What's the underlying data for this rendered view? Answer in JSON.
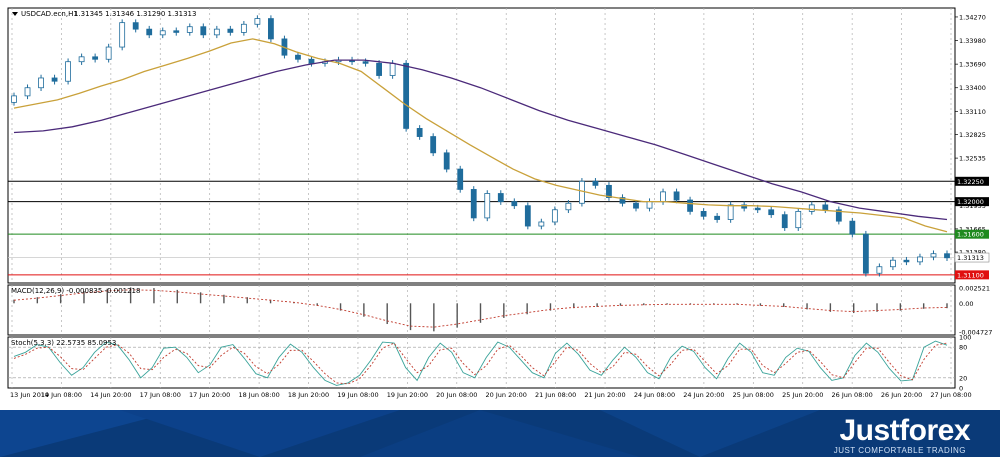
{
  "chart_data": {
    "type": "candlestick",
    "symbol_label": "USDCAD.ecn,H1",
    "ohlc_label": "1.31345 1.31346 1.31290 1.31313",
    "price_axis": {
      "ticks": [
        "1.34270",
        "1.33980",
        "1.33690",
        "1.33400",
        "1.33110",
        "1.32825",
        "1.32535",
        "1.32250",
        "1.31955",
        "1.31665",
        "1.31380",
        "1.31090"
      ],
      "ylim": [
        1.31,
        1.3438
      ]
    },
    "levels": [
      {
        "label": "1.32250",
        "value": 1.3225,
        "color": "#000000"
      },
      {
        "label": "1.32000",
        "value": 1.32,
        "color": "#000000"
      },
      {
        "label": "1.31600",
        "value": 1.316,
        "color": "#1f8a1f"
      },
      {
        "label": "1.31100",
        "value": 1.311,
        "color": "#e01010"
      }
    ],
    "last_price_label": "1.31313",
    "x_labels": [
      "13 Jun 2019",
      "14 Jun 08:00",
      "14 Jun 20:00",
      "17 Jun 08:00",
      "17 Jun 20:00",
      "18 Jun 08:00",
      "18 Jun 20:00",
      "19 Jun 08:00",
      "19 Jun 20:00",
      "20 Jun 08:00",
      "20 Jun 20:00",
      "21 Jun 08:00",
      "21 Jun 20:00",
      "24 Jun 08:00",
      "24 Jun 20:00",
      "25 Jun 08:00",
      "25 Jun 20:00",
      "26 Jun 08:00",
      "26 Jun 20:00",
      "27 Jun 08:00"
    ],
    "close": [
      1.333,
      1.334,
      1.3352,
      1.3348,
      1.3372,
      1.3378,
      1.3375,
      1.339,
      1.342,
      1.3412,
      1.3405,
      1.341,
      1.3408,
      1.3415,
      1.3405,
      1.3412,
      1.3408,
      1.3418,
      1.3425,
      1.34,
      1.338,
      1.3375,
      1.337,
      1.3372,
      1.3374,
      1.3372,
      1.337,
      1.3355,
      1.337,
      1.329,
      1.328,
      1.326,
      1.324,
      1.3215,
      1.318,
      1.321,
      1.32,
      1.3195,
      1.317,
      1.3175,
      1.319,
      1.3198,
      1.3225,
      1.322,
      1.3205,
      1.3198,
      1.3192,
      1.32,
      1.3212,
      1.3202,
      1.3188,
      1.3182,
      1.3178,
      1.3196,
      1.3192,
      1.319,
      1.3184,
      1.3168,
      1.3188,
      1.3196,
      1.319,
      1.3176,
      1.316,
      1.3112,
      1.312,
      1.3128,
      1.3126,
      1.3132,
      1.3136,
      1.3131
    ],
    "ma_fast": [
      1.3315,
      1.332,
      1.3325,
      1.3333,
      1.3342,
      1.335,
      1.336,
      1.3368,
      1.3376,
      1.3385,
      1.3395,
      1.34,
      1.3394,
      1.3384,
      1.3376,
      1.337,
      1.336,
      1.334,
      1.332,
      1.3302,
      1.3286,
      1.327,
      1.3255,
      1.324,
      1.3228,
      1.322,
      1.3214,
      1.3208,
      1.3204,
      1.32,
      1.32,
      1.3198,
      1.3196,
      1.3195,
      1.3195,
      1.3194,
      1.3192,
      1.319,
      1.3188,
      1.3186,
      1.3183,
      1.318,
      1.317,
      1.3163
    ],
    "ma_slow": [
      1.3285,
      1.3287,
      1.3292,
      1.33,
      1.331,
      1.332,
      1.333,
      1.334,
      1.335,
      1.336,
      1.3368,
      1.3374,
      1.3374,
      1.337,
      1.3362,
      1.3352,
      1.334,
      1.3326,
      1.3312,
      1.33,
      1.329,
      1.328,
      1.327,
      1.3258,
      1.3246,
      1.3234,
      1.3222,
      1.3212,
      1.32,
      1.3192,
      1.3187,
      1.3182,
      1.3178
    ],
    "macd": {
      "label": "MACD(12,26,9) -0.000835 -0.001218",
      "ticks": [
        "0.002521",
        "0.00",
        "-0.004727"
      ],
      "ylim": [
        -0.0052,
        0.003
      ],
      "hist": [
        0.0006,
        0.001,
        0.0015,
        0.002,
        0.0024,
        0.0026,
        0.0025,
        0.0022,
        0.0018,
        0.0014,
        0.001,
        0.0006,
        0.0002,
        -0.0004,
        -0.0012,
        -0.0022,
        -0.0034,
        -0.0044,
        -0.0046,
        -0.004,
        -0.0032,
        -0.0024,
        -0.0018,
        -0.0012,
        -0.0008,
        -0.0006,
        -0.0004,
        -0.0003,
        -0.0002,
        -0.0002,
        -0.0002,
        -0.0002,
        -0.0004,
        -0.0006,
        -0.001,
        -0.0014,
        -0.0016,
        -0.0014,
        -0.0012,
        -0.0009,
        -0.0008
      ]
    },
    "stoch": {
      "label": "Stoch(5,3,3) 22.5735 85.0953",
      "ticks": [
        "100",
        "80",
        "20",
        "0"
      ],
      "ylim": [
        0,
        100
      ],
      "main": [
        62,
        70,
        85,
        80,
        50,
        25,
        40,
        70,
        90,
        84,
        55,
        20,
        40,
        78,
        80,
        60,
        30,
        45,
        80,
        85,
        58,
        28,
        20,
        60,
        86,
        70,
        40,
        15,
        5,
        10,
        25,
        55,
        90,
        88,
        40,
        15,
        60,
        88,
        70,
        30,
        20,
        60,
        90,
        80,
        55,
        30,
        20,
        68,
        88,
        66,
        35,
        25,
        55,
        80,
        60,
        30,
        18,
        60,
        82,
        72,
        40,
        18,
        58,
        88,
        70,
        30,
        25,
        60,
        78,
        72,
        40,
        15,
        20,
        64,
        88,
        70,
        38,
        14,
        16,
        80,
        92,
        84
      ],
      "signal": [
        58,
        66,
        78,
        80,
        62,
        38,
        36,
        58,
        80,
        85,
        68,
        38,
        36,
        60,
        76,
        68,
        44,
        40,
        64,
        80,
        68,
        42,
        28,
        46,
        74,
        74,
        52,
        28,
        10,
        8,
        18,
        45,
        78,
        88,
        58,
        30,
        44,
        75,
        78,
        48,
        26,
        44,
        76,
        84,
        64,
        40,
        24,
        52,
        80,
        74,
        48,
        30,
        42,
        70,
        66,
        42,
        24,
        46,
        74,
        76,
        52,
        28,
        44,
        76,
        76,
        44,
        30,
        48,
        70,
        74,
        52,
        26,
        20,
        50,
        78,
        78,
        50,
        24,
        16,
        56,
        84,
        88
      ]
    }
  },
  "footer": {
    "brand": "Justforex",
    "tagline": "JUST COMFORTABLE TRADING"
  }
}
